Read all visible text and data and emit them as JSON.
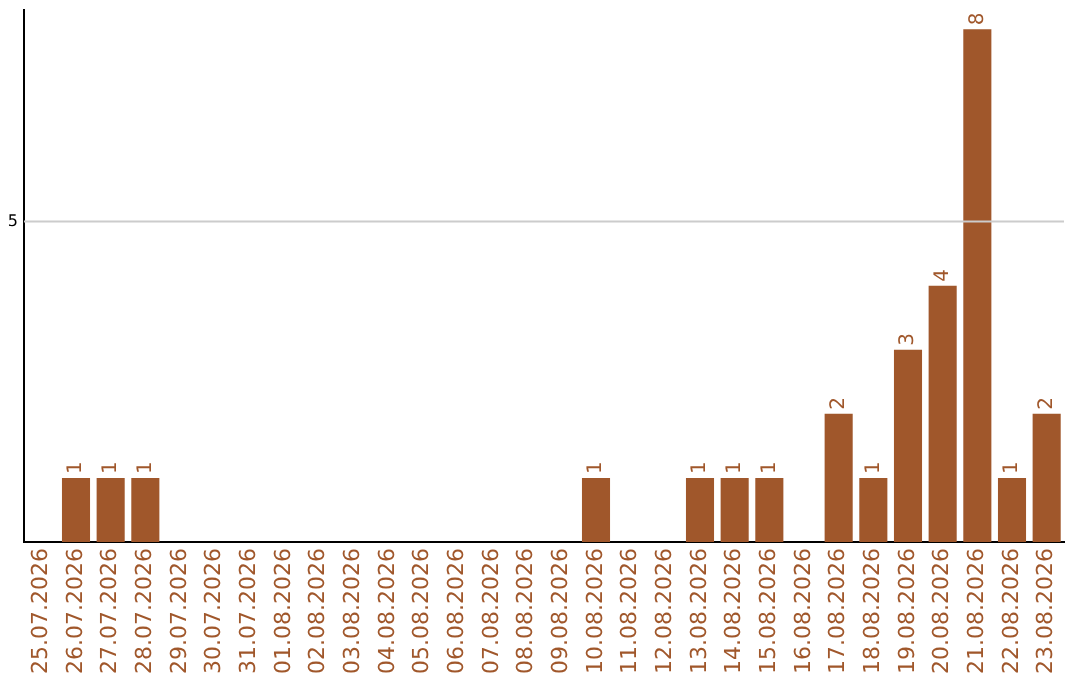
{
  "chart_data": {
    "type": "bar",
    "categories": [
      "25.07.2026",
      "26.07.2026",
      "27.07.2026",
      "28.07.2026",
      "29.07.2026",
      "30.07.2026",
      "31.07.2026",
      "01.08.2026",
      "02.08.2026",
      "03.08.2026",
      "04.08.2026",
      "05.08.2026",
      "06.08.2026",
      "07.08.2026",
      "08.08.2026",
      "09.08.2026",
      "10.08.2026",
      "11.08.2026",
      "12.08.2026",
      "13.08.2026",
      "14.08.2026",
      "15.08.2026",
      "16.08.2026",
      "17.08.2026",
      "18.08.2026",
      "19.08.2026",
      "20.08.2026",
      "21.08.2026",
      "22.08.2026",
      "23.08.2026"
    ],
    "values": [
      0,
      1,
      1,
      1,
      0,
      0,
      0,
      0,
      0,
      0,
      0,
      0,
      0,
      0,
      0,
      0,
      1,
      0,
      0,
      1,
      1,
      1,
      0,
      2,
      1,
      3,
      4,
      8,
      1,
      2
    ],
    "value_labels": [
      null,
      "1",
      "1",
      "1",
      null,
      null,
      null,
      null,
      null,
      null,
      null,
      null,
      null,
      null,
      null,
      null,
      "1",
      null,
      null,
      "1",
      "1",
      "1",
      null,
      "2",
      "1",
      "3",
      "4",
      "8",
      "1",
      "2"
    ],
    "color": "#a0572b",
    "ylim": [
      0,
      8.3
    ],
    "ref_lines": [
      {
        "axis": "y",
        "value": 5,
        "label": "5",
        "color": "#cccccc"
      }
    ]
  }
}
